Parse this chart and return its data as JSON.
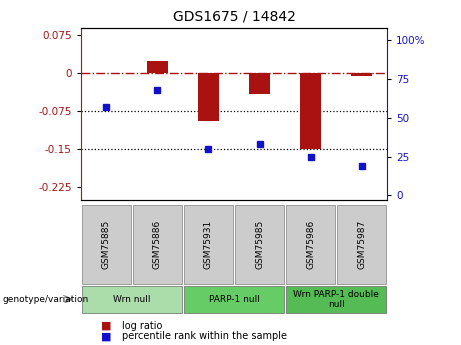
{
  "title": "GDS1675 / 14842",
  "samples": [
    "GSM75885",
    "GSM75886",
    "GSM75931",
    "GSM75985",
    "GSM75986",
    "GSM75987"
  ],
  "log_ratio": [
    0.0,
    0.025,
    -0.095,
    -0.04,
    -0.15,
    -0.005
  ],
  "percentile_rank": [
    57,
    68,
    30,
    33,
    25,
    19
  ],
  "ylim_left": [
    -0.25,
    0.09
  ],
  "ylim_right": [
    -3.0,
    108.0
  ],
  "yticks_left": [
    0.075,
    0.0,
    -0.075,
    -0.15,
    -0.225
  ],
  "yticks_left_labels": [
    "0.075",
    "0",
    "-0.075",
    "-0.15",
    "-0.225"
  ],
  "yticks_right": [
    100,
    75,
    50,
    25,
    0
  ],
  "yticks_right_labels": [
    "100%",
    "75",
    "50",
    "25",
    "0"
  ],
  "hlines": [
    -0.075,
    -0.15
  ],
  "bar_color": "#aa1111",
  "dot_color": "#1111cc",
  "dashed_line_y": 0.0,
  "groups": [
    {
      "label": "Wrn null",
      "start": 0,
      "end": 2,
      "color": "#aaddaa"
    },
    {
      "label": "PARP-1 null",
      "start": 2,
      "end": 4,
      "color": "#66cc66"
    },
    {
      "label": "Wrn PARP-1 double\nnull",
      "start": 4,
      "end": 6,
      "color": "#55bb55"
    }
  ],
  "legend_bar_label": "log ratio",
  "legend_dot_label": "percentile rank within the sample",
  "genotype_label": "genotype/variation"
}
